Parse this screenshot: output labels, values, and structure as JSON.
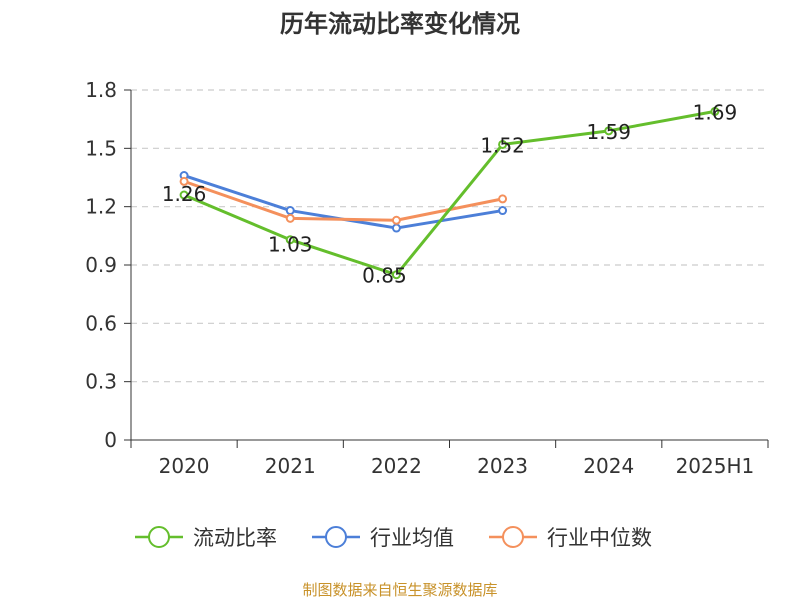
{
  "chart_data": {
    "type": "line",
    "title": "历年流动比率变化情况",
    "categories": [
      "2020",
      "2021",
      "2022",
      "2023",
      "2024",
      "2025H1"
    ],
    "y_ticks": [
      "0",
      "0.3",
      "0.6",
      "0.9",
      "1.2",
      "1.5",
      "1.8"
    ],
    "ylim": [
      0,
      1.8
    ],
    "grid": true,
    "legend_position": "bottom",
    "series": [
      {
        "name": "流动比率",
        "color": "#64be2c",
        "values": [
          1.26,
          1.03,
          0.85,
          1.52,
          1.59,
          1.69
        ],
        "labels": [
          "1.26",
          "1.03",
          "0.85",
          "1.52",
          "1.59",
          "1.69"
        ]
      },
      {
        "name": "行业均值",
        "color": "#4c7fd8",
        "values": [
          1.36,
          1.18,
          1.09,
          1.18,
          null,
          null
        ]
      },
      {
        "name": "行业中位数",
        "color": "#f4905c",
        "values": [
          1.33,
          1.14,
          1.13,
          1.24,
          null,
          null
        ]
      }
    ]
  },
  "source_text": "制图数据来自恒生聚源数据库"
}
